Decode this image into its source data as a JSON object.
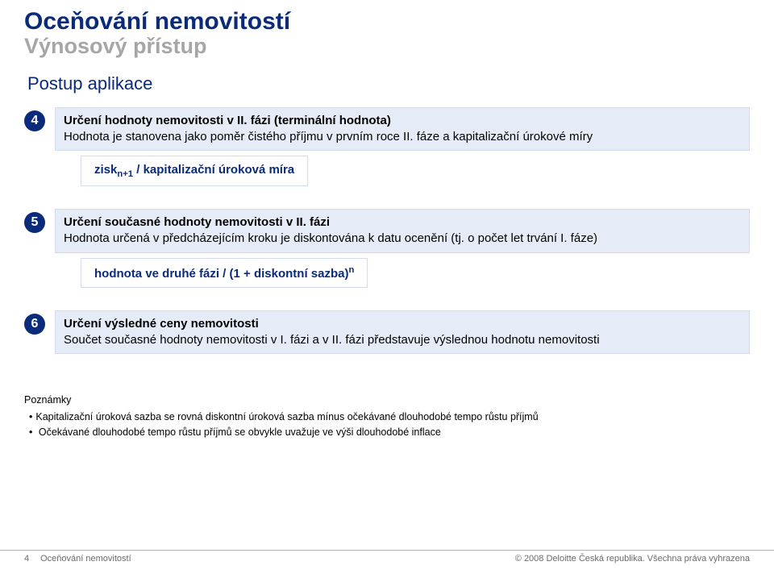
{
  "header": {
    "title": "Oceňování nemovitostí",
    "subtitle": "Výnosový přístup"
  },
  "section_heading": "Postup aplikace",
  "steps": [
    {
      "num": "4",
      "title": "Určení hodnoty nemovitosti v II. fázi (terminální hodnota)",
      "body": "Hodnota je stanovena jako poměr čistého příjmu v prvním roce II. fáze a kapitalizační úrokové míry",
      "formula_pre": "zisk",
      "formula_sub": "n+1",
      "formula_post": " / kapitalizační úroková míra"
    },
    {
      "num": "5",
      "title": "Určení současné hodnoty nemovitosti v II. fázi",
      "body": "Hodnota určená v předcházejícím kroku je diskontována k datu ocenění (tj. o počet let trvání I. fáze)",
      "formula_main": "hodnota ve druhé fázi / (1 + diskontní sazba)",
      "formula_sup": "n"
    },
    {
      "num": "6",
      "title": "Určení výsledné ceny nemovitosti",
      "body": "Součet současné hodnoty nemovitosti v I. fázi a v II. fázi představuje výslednou hodnotu nemovitosti"
    }
  ],
  "notes": {
    "heading": "Poznámky",
    "items": [
      "Kapitalizační úroková sazba se rovná diskontní úroková sazba mínus očekávané dlouhodobé tempo růstu příjmů",
      " Očekávané dlouhodobé tempo růstu příjmů se obvykle uvažuje ve výši dlouhodobé inflace"
    ]
  },
  "footer": {
    "page_num": "4",
    "doc_title": "Oceňování nemovitostí",
    "copyright": "© 2008 Deloitte Česká republika. Všechna práva vyhrazena"
  }
}
